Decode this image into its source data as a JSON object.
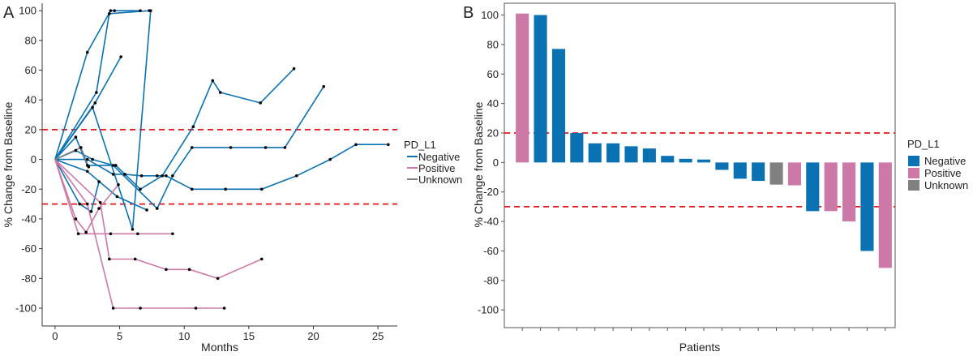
{
  "chart_data": [
    {
      "panel": "A",
      "type": "line",
      "xlabel": "Months",
      "ylabel": "% Change from Baseline",
      "xlim": [
        -1,
        26.5
      ],
      "ylim": [
        -112,
        105
      ],
      "xticks": [
        0,
        5,
        10,
        15,
        20,
        25
      ],
      "yticks": [
        -100,
        -80,
        -60,
        -40,
        -20,
        0,
        20,
        40,
        60,
        80,
        100
      ],
      "reference_lines": [
        20,
        -30
      ],
      "legend": {
        "title": "PD_L1",
        "entries": [
          "Negative",
          "Positive",
          "Unknown"
        ],
        "placement": "right"
      },
      "series": [
        {
          "group": "Negative",
          "points": [
            [
              0,
              0
            ],
            [
              2.5,
              72
            ],
            [
              4.3,
              100
            ],
            [
              4.6,
              100
            ],
            [
              6.6,
              100
            ]
          ]
        },
        {
          "group": "Negative",
          "points": [
            [
              0,
              0
            ],
            [
              3.2,
              45
            ],
            [
              4.2,
              98
            ],
            [
              7.3,
              100
            ]
          ]
        },
        {
          "group": "Negative",
          "points": [
            [
              0,
              0
            ],
            [
              3.1,
              38
            ],
            [
              5.1,
              69
            ]
          ]
        },
        {
          "group": "Negative",
          "points": [
            [
              0,
              0
            ],
            [
              2.9,
              35
            ],
            [
              6,
              -47
            ],
            [
              7.4,
              100
            ]
          ]
        },
        {
          "group": "Negative",
          "points": [
            [
              0,
              0
            ],
            [
              1.6,
              15
            ],
            [
              2.5,
              -4
            ],
            [
              4.7,
              -4
            ],
            [
              6.6,
              -20
            ],
            [
              8.3,
              -11
            ],
            [
              10.7,
              22
            ],
            [
              12.2,
              53
            ],
            [
              12.8,
              45
            ],
            [
              15.9,
              38
            ],
            [
              18.5,
              61
            ]
          ]
        },
        {
          "group": "Negative",
          "points": [
            [
              0,
              0
            ],
            [
              2.5,
              0
            ],
            [
              4.5,
              -10
            ],
            [
              5.4,
              -10
            ],
            [
              6.7,
              -11
            ],
            [
              7.9,
              -11
            ],
            [
              8.6,
              -11
            ],
            [
              10.6,
              -20
            ],
            [
              13.2,
              -20
            ],
            [
              16,
              -20
            ],
            [
              18.7,
              -11
            ],
            [
              21.3,
              0
            ],
            [
              23.3,
              10
            ],
            [
              25.8,
              10
            ]
          ]
        },
        {
          "group": "Negative",
          "points": [
            [
              0,
              0
            ],
            [
              1.6,
              6
            ],
            [
              2.9,
              0
            ],
            [
              4.5,
              -4
            ],
            [
              7.9,
              -33
            ],
            [
              9.1,
              -11
            ],
            [
              10.6,
              8
            ],
            [
              13.6,
              8
            ],
            [
              16.3,
              8
            ],
            [
              17.8,
              8
            ],
            [
              20.8,
              49
            ]
          ]
        },
        {
          "group": "Negative",
          "points": [
            [
              0,
              0
            ],
            [
              2.5,
              -8
            ],
            [
              4.8,
              -25
            ],
            [
              7.1,
              -34
            ]
          ]
        },
        {
          "group": "Negative",
          "points": [
            [
              0,
              0
            ],
            [
              1.9,
              -30
            ],
            [
              2.8,
              -35
            ],
            [
              3.4,
              -15
            ]
          ]
        },
        {
          "group": "Positive",
          "points": [
            [
              0,
              0
            ],
            [
              1.6,
              -40
            ],
            [
              2.4,
              -49
            ],
            [
              3.4,
              -33
            ],
            [
              4.9,
              -17
            ]
          ]
        },
        {
          "group": "Positive",
          "points": [
            [
              0,
              0
            ],
            [
              1.8,
              -50
            ],
            [
              4.3,
              -50
            ],
            [
              6.4,
              -50
            ],
            [
              9.1,
              -50
            ]
          ]
        },
        {
          "group": "Positive",
          "points": [
            [
              0,
              0
            ],
            [
              3.5,
              -29
            ],
            [
              4.2,
              -67
            ],
            [
              6.2,
              -67
            ],
            [
              8.6,
              -74
            ],
            [
              10.4,
              -74
            ],
            [
              12.6,
              -80
            ],
            [
              16,
              -67
            ]
          ]
        },
        {
          "group": "Positive",
          "points": [
            [
              0,
              0
            ],
            [
              2.5,
              -30
            ],
            [
              4.5,
              -100
            ],
            [
              6.6,
              -100
            ],
            [
              10.9,
              -100
            ],
            [
              13.1,
              -100
            ]
          ]
        },
        {
          "group": "Unknown",
          "points": [
            [
              0,
              0
            ],
            [
              2,
              8
            ],
            [
              2.6,
              -5
            ]
          ]
        }
      ]
    },
    {
      "panel": "B",
      "type": "bar",
      "xlabel": "Patients",
      "ylabel": "% Change from Baseline",
      "ylim": [
        -112,
        108
      ],
      "yticks": [
        -100,
        -80,
        -60,
        -40,
        -20,
        0,
        20,
        40,
        60,
        80,
        100
      ],
      "reference_lines": [
        20,
        -30
      ],
      "legend": {
        "title": "PD_L1",
        "entries": [
          "Negative",
          "Positive",
          "Unknown"
        ],
        "placement": "right"
      },
      "values": [
        101,
        100,
        77,
        20,
        13,
        13,
        11,
        9.5,
        4.5,
        2.5,
        2,
        -5,
        -11,
        -12.5,
        -15,
        -15.5,
        -33,
        -33,
        -40,
        -60,
        -71.5
      ],
      "groups": [
        "Positive",
        "Negative",
        "Negative",
        "Negative",
        "Negative",
        "Negative",
        "Negative",
        "Negative",
        "Negative",
        "Negative",
        "Negative",
        "Negative",
        "Negative",
        "Negative",
        "Unknown",
        "Positive",
        "Negative",
        "Positive",
        "Positive",
        "Negative",
        "Positive"
      ]
    }
  ],
  "colors": {
    "Negative": "#0a72b3",
    "Positive": "#cc79a7",
    "Unknown": "#808080",
    "reference": "#e8151b",
    "marker": "#000000"
  }
}
